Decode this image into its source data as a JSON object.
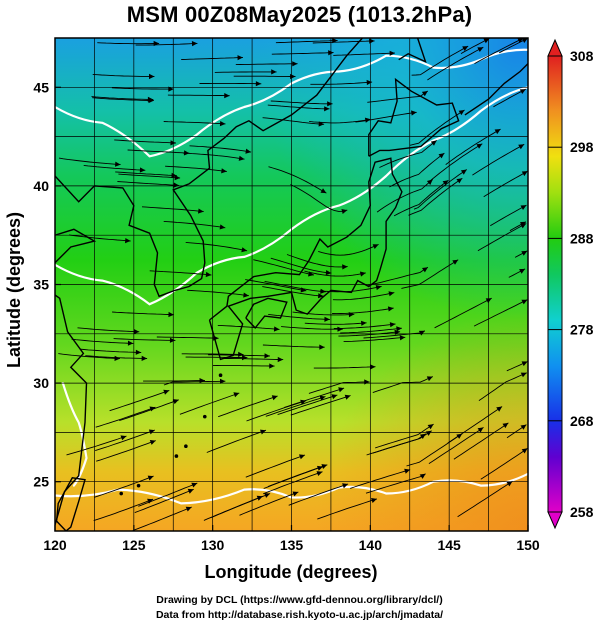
{
  "title": "MSM 00Z08May2025 (1013.2hPa)",
  "x_axis": {
    "label": "Longitude (degrees)",
    "range": [
      120,
      150
    ],
    "ticks": [
      "120",
      "125",
      "130",
      "135",
      "140",
      "145",
      "150"
    ]
  },
  "y_axis": {
    "label": "Latitude  (degrees)",
    "range": [
      22.5,
      47.5
    ],
    "ticks": [
      "25",
      "30",
      "35",
      "40",
      "45"
    ]
  },
  "colorbar": {
    "range": [
      258,
      308
    ],
    "ticks": [
      "308",
      "298",
      "288",
      "278",
      "268",
      "258"
    ],
    "units": ""
  },
  "field": "temperature shading (K) with surface wind streamlines",
  "credits": {
    "line1": "Drawing by DCL (https://www.gfd-dennou.org/library/dcl/)",
    "line2": "Data from http://database.rish.kyoto-u.ac.jp/arch/jmadata/"
  },
  "colors": {
    "warm": "#f5a020",
    "mid": "#18d010",
    "cool": "#1a9de0",
    "coast": "#000000",
    "contour": "#ffffff"
  }
}
